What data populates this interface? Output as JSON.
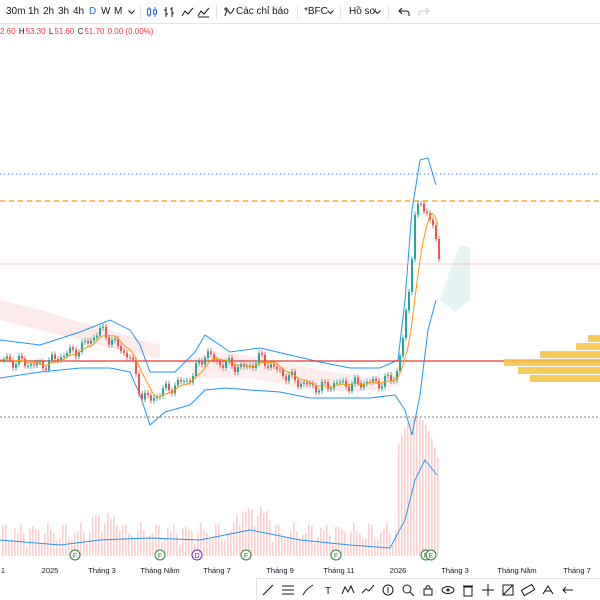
{
  "toolbar": {
    "intervals": [
      "30m",
      "1h",
      "2h",
      "3h",
      "4h",
      "D",
      "W",
      "M"
    ],
    "active_interval": "D",
    "indicators_label": "Các chỉ báo",
    "symbol_label": "*BFC",
    "profile_label": "Hồ sơ"
  },
  "ohlc": {
    "open_label": "",
    "open": "2.60",
    "high_label": "H",
    "high": "53.30",
    "low_label": "L",
    "low": "51.60",
    "close_label": "C",
    "close": "51.70",
    "change": "0.00 (0.00%)"
  },
  "xaxis": {
    "ticks": [
      "1",
      "2025",
      "Tháng 3",
      "Tháng Năm",
      "Tháng 7",
      "Tháng 9",
      "Tháng 11",
      "2026",
      "Tháng 3",
      "Tháng Năm",
      "Tháng 7"
    ]
  },
  "event_markers": [
    "F",
    "F",
    "D",
    "F",
    "F",
    "F",
    "E"
  ],
  "colors": {
    "up": "#26a69a",
    "down": "#ef5350",
    "bollinger": "#2196f3",
    "ma": "#ff9800",
    "resistance_dashed": "#ff9800",
    "support_red": "#e53935",
    "dotted_top": "#2962ff",
    "volume_profile": "#f5c242",
    "accent": "#2962ff"
  },
  "drawing_tools": [
    "trend-line-icon",
    "fib-icon",
    "brush-icon",
    "text-icon",
    "pattern-icon",
    "forecast-icon",
    "measure-icon",
    "zoom-icon",
    "lock-icon",
    "visibility-icon",
    "trash-icon",
    "crosshair-icon",
    "prediction-icon",
    "ruler-icon",
    "long-position-icon",
    "arrow-icon"
  ]
}
